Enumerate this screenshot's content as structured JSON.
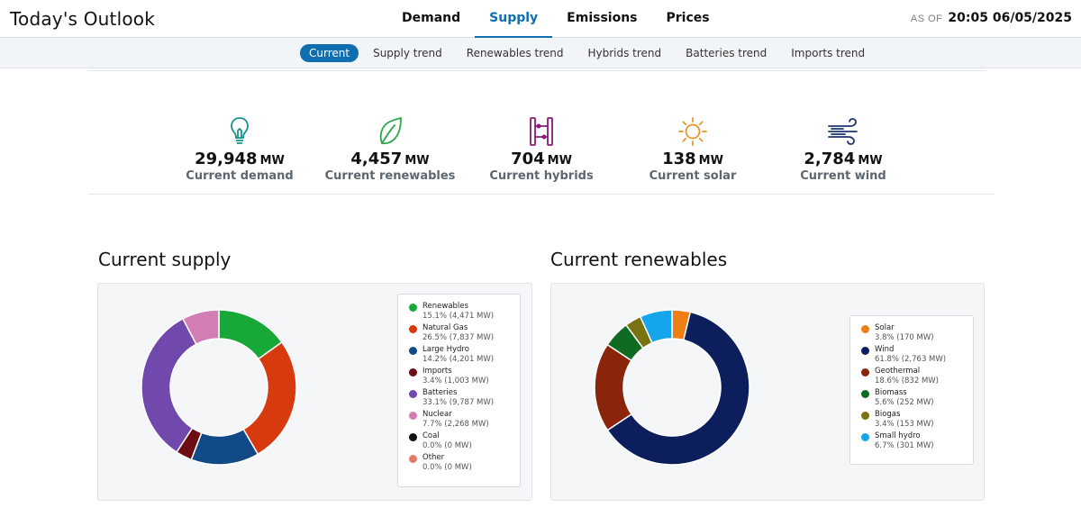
{
  "header": {
    "title": "Today's Outlook",
    "tabs": [
      {
        "label": "Demand",
        "active": false
      },
      {
        "label": "Supply",
        "active": true
      },
      {
        "label": "Emissions",
        "active": false
      },
      {
        "label": "Prices",
        "active": false
      }
    ],
    "asof_label": "AS OF",
    "asof_value": "20:05 06/05/2025"
  },
  "subnav": {
    "tabs": [
      "Current",
      "Supply trend",
      "Renewables trend",
      "Hybrids trend",
      "Batteries trend",
      "Imports trend"
    ],
    "active_index": 0,
    "accent": "#0f6eb0"
  },
  "stats": [
    {
      "value": "29,948",
      "unit": "MW",
      "label": "Current demand",
      "icon": "lightbulb-icon",
      "color": "#16938a"
    },
    {
      "value": "4,457",
      "unit": "MW",
      "label": "Current renewables",
      "icon": "leaf-icon",
      "color": "#2aa84a"
    },
    {
      "value": "704",
      "unit": "MW",
      "label": "Current hybrids",
      "icon": "hybrid-icon",
      "color": "#8a1a7a"
    },
    {
      "value": "138",
      "unit": "MW",
      "label": "Current solar",
      "icon": "sun-icon",
      "color": "#e8921c"
    },
    {
      "value": "2,784",
      "unit": "MW",
      "label": "Current wind",
      "icon": "wind-icon",
      "color": "#1d3470"
    }
  ],
  "supply": {
    "title": "Current supply",
    "items": [
      {
        "name": "Renewables",
        "detail": "15.1% (4,471 MW)",
        "pct": 15.1,
        "color": "#17a838"
      },
      {
        "name": "Natural Gas",
        "detail": "26.5% (7,837 MW)",
        "pct": 26.5,
        "color": "#d63a0e"
      },
      {
        "name": "Large Hydro",
        "detail": "14.2% (4,201 MW)",
        "pct": 14.2,
        "color": "#104b88"
      },
      {
        "name": "Imports",
        "detail": "3.4% (1,003 MW)",
        "pct": 3.4,
        "color": "#6b0d12"
      },
      {
        "name": "Batteries",
        "detail": "33.1% (9,787 MW)",
        "pct": 33.1,
        "color": "#7149ad"
      },
      {
        "name": "Nuclear",
        "detail": "7.7% (2,268 MW)",
        "pct": 7.7,
        "color": "#d27db4"
      },
      {
        "name": "Coal",
        "detail": "0.0% (0 MW)",
        "pct": 0,
        "color": "#111111"
      },
      {
        "name": "Other",
        "detail": "0.0% (0 MW)",
        "pct": 0,
        "color": "#e07a6a"
      }
    ]
  },
  "renewables": {
    "title": "Current renewables",
    "items": [
      {
        "name": "Solar",
        "detail": "3.8% (170 MW)",
        "pct": 3.8,
        "color": "#ee7e15"
      },
      {
        "name": "Wind",
        "detail": "61.8% (2,763 MW)",
        "pct": 61.8,
        "color": "#0c1f5c"
      },
      {
        "name": "Geothermal",
        "detail": "18.6% (832 MW)",
        "pct": 18.6,
        "color": "#8a250b"
      },
      {
        "name": "Biomass",
        "detail": "5.6% (252 MW)",
        "pct": 5.6,
        "color": "#0f6b22"
      },
      {
        "name": "Biogas",
        "detail": "3.4% (153 MW)",
        "pct": 3.4,
        "color": "#7a7311"
      },
      {
        "name": "Small hydro",
        "detail": "6.7% (301 MW)",
        "pct": 6.7,
        "color": "#14a5ec"
      }
    ]
  }
}
